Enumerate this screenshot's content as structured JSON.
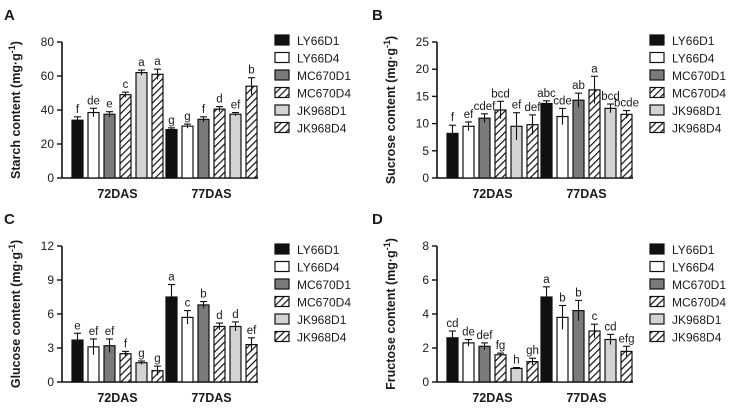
{
  "legend": [
    "LY66D1",
    "LY66D4",
    "MC670D1",
    "MC670D4",
    "JK968D1",
    "JK968D4"
  ],
  "chart_data": [
    {
      "type": "bar",
      "panel": "A",
      "ylabel": "Starch content (mg·g⁻¹)",
      "ylabel_main": "Starch content (mg·g",
      "ylabel_sup": "-1",
      "ylabel_end": ")",
      "ylim": [
        0,
        80
      ],
      "yticks": [
        0,
        20,
        40,
        60,
        80
      ],
      "categories": [
        "72DAS",
        "77DAS"
      ],
      "series": [
        {
          "name": "LY66D1",
          "values": [
            34,
            28.5
          ],
          "errors": [
            2,
            1
          ],
          "letters": [
            "f",
            "g"
          ]
        },
        {
          "name": "LY66D4",
          "values": [
            38.5,
            30.5
          ],
          "errors": [
            2.5,
            1.2
          ],
          "letters": [
            "de",
            "g"
          ]
        },
        {
          "name": "MC670D1",
          "values": [
            37.5,
            34.5
          ],
          "errors": [
            1.5,
            1.5
          ],
          "letters": [
            "e",
            "f"
          ]
        },
        {
          "name": "MC670D4",
          "values": [
            49,
            40.5
          ],
          "errors": [
            1.5,
            1.5
          ],
          "letters": [
            "c",
            "d"
          ]
        },
        {
          "name": "JK968D1",
          "values": [
            62,
            37.5
          ],
          "errors": [
            1.5,
            1
          ],
          "letters": [
            "a",
            "ef"
          ]
        },
        {
          "name": "JK968D4",
          "values": [
            61,
            54
          ],
          "errors": [
            3,
            5
          ],
          "letters": [
            "a",
            "b"
          ]
        }
      ]
    },
    {
      "type": "bar",
      "panel": "B",
      "ylabel": "Sucrose content (mg·g⁻¹)",
      "ylabel_main": "Sucrose content (mg·g",
      "ylabel_sup": "-1",
      "ylabel_end": ")",
      "ylim": [
        0,
        25
      ],
      "yticks": [
        0,
        5,
        10,
        15,
        20,
        25
      ],
      "categories": [
        "72DAS",
        "77DAS"
      ],
      "series": [
        {
          "name": "LY66D1",
          "values": [
            8.2,
            13.7
          ],
          "errors": [
            1.5,
            0.5
          ],
          "letters": [
            "f",
            "abc"
          ]
        },
        {
          "name": "LY66D4",
          "values": [
            9.5,
            11.3
          ],
          "errors": [
            0.8,
            1.5
          ],
          "letters": [
            "ef",
            "cde"
          ]
        },
        {
          "name": "MC670D1",
          "values": [
            11.0,
            14.3
          ],
          "errors": [
            0.8,
            1.3
          ],
          "letters": [
            "cdef",
            "ab"
          ]
        },
        {
          "name": "MC670D4",
          "values": [
            12.5,
            16.2
          ],
          "errors": [
            1.6,
            2.5
          ],
          "letters": [
            "bcd",
            "a"
          ]
        },
        {
          "name": "JK968D1",
          "values": [
            9.5,
            12.8
          ],
          "errors": [
            2.5,
            0.8
          ],
          "letters": [
            "ef",
            "bcd"
          ]
        },
        {
          "name": "JK968D4",
          "values": [
            9.8,
            11.7
          ],
          "errors": [
            1.8,
            0.7
          ],
          "letters": [
            "def",
            "bcde"
          ]
        }
      ]
    },
    {
      "type": "bar",
      "panel": "C",
      "ylabel": "Glucose content (mg·g⁻¹)",
      "ylabel_main": "Glucose content (mg·g",
      "ylabel_sup": "-1",
      "ylabel_end": ")",
      "ylim": [
        0,
        12
      ],
      "yticks": [
        0,
        3,
        6,
        9,
        12
      ],
      "categories": [
        "72DAS",
        "77DAS"
      ],
      "series": [
        {
          "name": "LY66D1",
          "values": [
            3.7,
            7.5
          ],
          "errors": [
            0.6,
            1.1
          ],
          "letters": [
            "e",
            "a"
          ]
        },
        {
          "name": "LY66D4",
          "values": [
            3.1,
            5.7
          ],
          "errors": [
            0.7,
            0.6
          ],
          "letters": [
            "ef",
            "c"
          ]
        },
        {
          "name": "MC670D1",
          "values": [
            3.2,
            6.8
          ],
          "errors": [
            0.6,
            0.3
          ],
          "letters": [
            "ef",
            "b"
          ]
        },
        {
          "name": "MC670D4",
          "values": [
            2.5,
            4.9
          ],
          "errors": [
            0.2,
            0.3
          ],
          "letters": [
            "f",
            "d"
          ]
        },
        {
          "name": "JK968D1",
          "values": [
            1.7,
            4.9
          ],
          "errors": [
            0.15,
            0.4
          ],
          "letters": [
            "g",
            "d"
          ]
        },
        {
          "name": "JK968D4",
          "values": [
            1.0,
            3.3
          ],
          "errors": [
            0.4,
            0.6
          ],
          "letters": [
            "g",
            "ef"
          ]
        }
      ]
    },
    {
      "type": "bar",
      "panel": "D",
      "ylabel": "Fructose content (mg·g⁻¹)",
      "ylabel_main": "Fructose content (mg·g",
      "ylabel_sup": "-1",
      "ylabel_end": ")",
      "ylim": [
        0,
        8
      ],
      "yticks": [
        0,
        2,
        4,
        6,
        8
      ],
      "categories": [
        "72DAS",
        "77DAS"
      ],
      "series": [
        {
          "name": "LY66D1",
          "values": [
            2.6,
            5.0
          ],
          "errors": [
            0.4,
            0.6
          ],
          "letters": [
            "cd",
            "a"
          ]
        },
        {
          "name": "LY66D4",
          "values": [
            2.3,
            3.8
          ],
          "errors": [
            0.2,
            0.7
          ],
          "letters": [
            "de",
            "b"
          ]
        },
        {
          "name": "MC670D1",
          "values": [
            2.1,
            4.2
          ],
          "errors": [
            0.2,
            0.6
          ],
          "letters": [
            "def",
            "b"
          ]
        },
        {
          "name": "MC670D4",
          "values": [
            1.6,
            3.0
          ],
          "errors": [
            0.1,
            0.4
          ],
          "letters": [
            "fg",
            "c"
          ]
        },
        {
          "name": "JK968D1",
          "values": [
            0.8,
            2.5
          ],
          "errors": [
            0.05,
            0.3
          ],
          "letters": [
            "h",
            "cd"
          ]
        },
        {
          "name": "JK968D4",
          "values": [
            1.2,
            1.8
          ],
          "errors": [
            0.2,
            0.3
          ],
          "letters": [
            "gh",
            "efg"
          ]
        }
      ]
    }
  ]
}
